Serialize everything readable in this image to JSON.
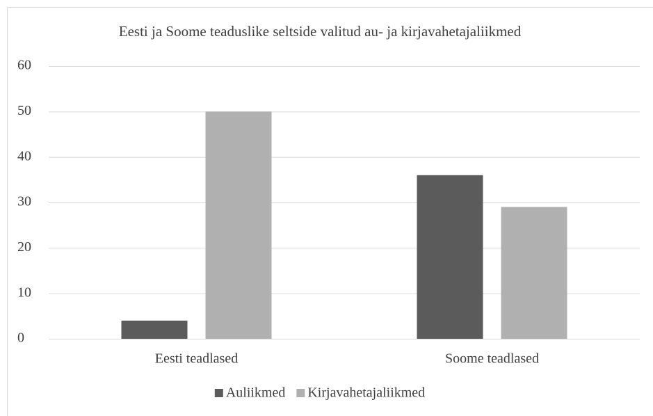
{
  "chart_data": {
    "type": "bar",
    "title": "Eesti ja Soome teaduslike seltside valitud au- ja kirjavahetajaliikmed",
    "categories": [
      "Eesti teadlased",
      "Soome teadlased"
    ],
    "series": [
      {
        "name": "Auliikmed",
        "color": "#5b5b5b",
        "values": [
          4,
          36
        ]
      },
      {
        "name": "Kirjavahetajaliikmed",
        "color": "#b0b0b0",
        "values": [
          50,
          29
        ]
      }
    ],
    "ylim": [
      0,
      60
    ],
    "yticks": [
      0,
      10,
      20,
      30,
      40,
      50,
      60
    ],
    "grid": true,
    "legend": "bottom"
  }
}
